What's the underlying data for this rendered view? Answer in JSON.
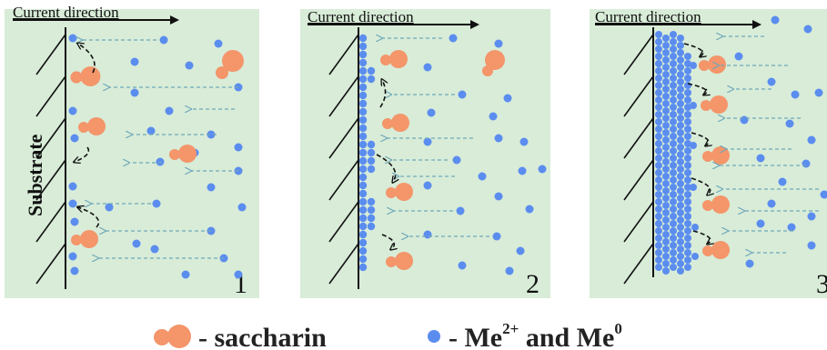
{
  "panels": [
    {
      "current_label": "Current direction",
      "number": "1",
      "substrate_label": "Substrate"
    },
    {
      "current_label": "Current direction",
      "number": "2"
    },
    {
      "current_label": "Current direction",
      "number": "3"
    }
  ],
  "legend": {
    "saccharin_label": "- saccharin",
    "ion_label_prefix": "- Me",
    "ion_sup_1": "2+",
    "ion_label_middle": " and Me",
    "ion_sup_2": "0"
  },
  "colors": {
    "panel_bg": "#d8ecd8",
    "ion": "#5b8def",
    "saccharin": "#f4956a",
    "arrow_dashed": "#6fa8b8",
    "line": "#111111"
  }
}
